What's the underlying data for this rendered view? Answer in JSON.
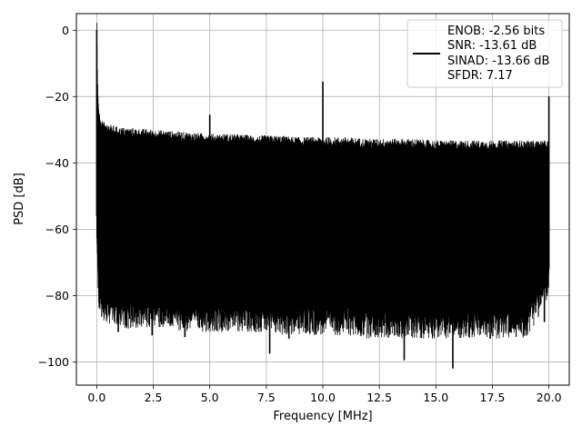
{
  "chart_data": {
    "type": "line",
    "xlabel": "Frequency [MHz]",
    "ylabel": "PSD [dB]",
    "xlim": [
      -0.9,
      20.9
    ],
    "ylim": [
      -107,
      5
    ],
    "xticks": [
      0.0,
      2.5,
      5.0,
      7.5,
      10.0,
      12.5,
      15.0,
      17.5,
      20.0
    ],
    "xtick_labels": [
      "0.0",
      "2.5",
      "5.0",
      "7.5",
      "10.0",
      "12.5",
      "15.0",
      "17.5",
      "20.0"
    ],
    "yticks": [
      0,
      -20,
      -40,
      -60,
      -80,
      -100
    ],
    "ytick_labels": [
      "0",
      "−20",
      "−40",
      "−60",
      "−80",
      "−100"
    ],
    "grid": true,
    "legend_position": "top-right",
    "legend_lines": [
      "ENOB: -2.56 bits",
      "SNR: -13.61 dB",
      "SINAD: -13.66 dB",
      "SFDR: 7.17"
    ],
    "line_color": "#000000",
    "series": [
      {
        "x": [
          0.0,
          0.05,
          0.1,
          0.2,
          0.5,
          1.0,
          2.0,
          3.0,
          4.0,
          5.0,
          6.0,
          7.0,
          8.0,
          9.0,
          10.0,
          11.0,
          12.0,
          13.0,
          14.0,
          15.0,
          16.0,
          17.0,
          18.0,
          19.0,
          20.0
        ],
        "upper_envelope": [
          0,
          -22,
          -27,
          -30,
          -31,
          -32,
          -32.5,
          -33,
          -33.5,
          -34,
          -34,
          -34.5,
          -34.5,
          -35,
          -35,
          -35,
          -35.5,
          -35.5,
          -35.5,
          -36,
          -36,
          -36,
          -36,
          -36,
          -36
        ],
        "lower_envelope": [
          -56,
          -72,
          -76,
          -79,
          -80,
          -81,
          -81,
          -81,
          -82,
          -82,
          -82,
          -82,
          -83,
          -83,
          -83,
          -83,
          -84,
          -84,
          -84,
          -84,
          -84,
          -84,
          -84,
          -84,
          -72
        ]
      }
    ],
    "spurs": [
      {
        "x": 0.0,
        "y": 0
      },
      {
        "x": 5.0,
        "y": -25.5
      },
      {
        "x": 10.0,
        "y": -15.5
      },
      {
        "x": 20.0,
        "y": -20
      }
    ],
    "dips": [
      {
        "x": 0.95,
        "y": -91
      },
      {
        "x": 2.45,
        "y": -92
      },
      {
        "x": 3.9,
        "y": -92.5
      },
      {
        "x": 7.65,
        "y": -97.5
      },
      {
        "x": 13.6,
        "y": -99.5
      },
      {
        "x": 15.75,
        "y": -102
      },
      {
        "x": 17.4,
        "y": -93
      },
      {
        "x": 18.3,
        "y": -91
      },
      {
        "x": 8.5,
        "y": -93
      },
      {
        "x": 19.8,
        "y": -88
      }
    ]
  }
}
